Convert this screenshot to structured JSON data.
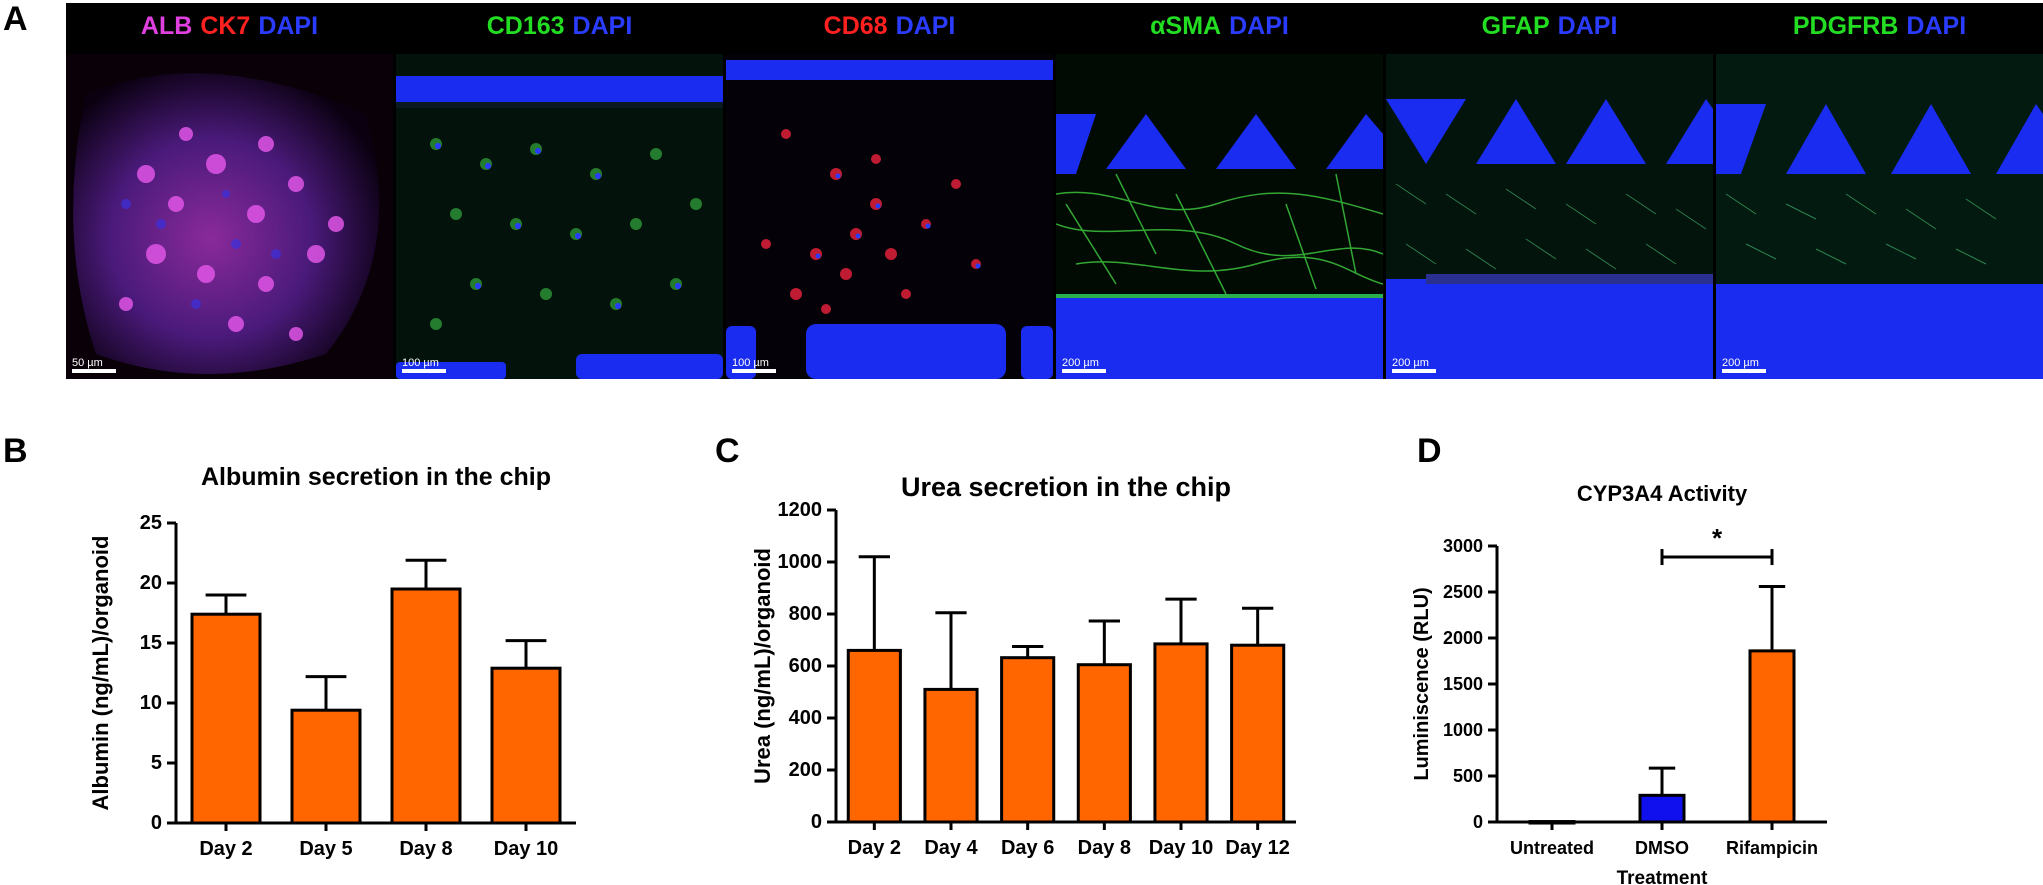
{
  "panel_labels": {
    "a": "A",
    "b": "B",
    "c": "C",
    "d": "D"
  },
  "micrographs": [
    {
      "stains": [
        {
          "text": "ALB",
          "color": "#e040e0"
        },
        {
          "text": "CK7",
          "color": "#ff2020"
        },
        {
          "text": "DAPI",
          "color": "#2a3cff"
        }
      ],
      "scale": "50 µm"
    },
    {
      "stains": [
        {
          "text": "CD163",
          "color": "#22dd22"
        },
        {
          "text": "DAPI",
          "color": "#2a3cff"
        }
      ],
      "scale": "100 µm"
    },
    {
      "stains": [
        {
          "text": "CD68",
          "color": "#ff2020"
        },
        {
          "text": "DAPI",
          "color": "#2a3cff"
        }
      ],
      "scale": "100 µm"
    },
    {
      "stains": [
        {
          "text": "αSMA",
          "color": "#22dd22"
        },
        {
          "text": "DAPI",
          "color": "#2a3cff"
        }
      ],
      "scale": "200 µm"
    },
    {
      "stains": [
        {
          "text": "GFAP",
          "color": "#22dd22"
        },
        {
          "text": "DAPI",
          "color": "#2a3cff"
        }
      ],
      "scale": "200 µm"
    },
    {
      "stains": [
        {
          "text": "PDGFRB",
          "color": "#22dd22"
        },
        {
          "text": "DAPI",
          "color": "#2a3cff"
        }
      ],
      "scale": "200 µm"
    }
  ],
  "chart_data": [
    {
      "type": "bar",
      "title": "Albumin secretion in the chip",
      "xlabel": "",
      "ylabel": "Albumin (ng/mL)/organoid",
      "categories": [
        "Day 2",
        "Day 5",
        "Day 8",
        "Day 10"
      ],
      "values": [
        17.4,
        9.4,
        19.5,
        12.9
      ],
      "errors": [
        1.6,
        2.8,
        2.4,
        2.3
      ],
      "ylim": [
        0,
        25
      ],
      "yticks": [
        0,
        5,
        10,
        15,
        20,
        25
      ],
      "bar_color": "#ff6600"
    },
    {
      "type": "bar",
      "title": "Urea secretion in the chip",
      "xlabel": "",
      "ylabel": "Urea (ng/mL)/organoid",
      "categories": [
        "Day 2",
        "Day 4",
        "Day 6",
        "Day 8",
        "Day 10",
        "Day 12"
      ],
      "values": [
        660,
        510,
        632,
        605,
        685,
        680
      ],
      "errors": [
        360,
        295,
        43,
        168,
        172,
        142
      ],
      "ylim": [
        0,
        1200
      ],
      "yticks": [
        0,
        200,
        400,
        600,
        800,
        1000,
        1200
      ],
      "bar_color": "#ff6600"
    },
    {
      "type": "bar",
      "title": "CYP3A4 Activity",
      "xlabel": "Treatment",
      "ylabel": "Luminiscence (RLU)",
      "categories": [
        "Untreated",
        "DMSO",
        "Rifampicin"
      ],
      "values": [
        5,
        290,
        1860
      ],
      "errors": [
        0,
        295,
        700
      ],
      "colors": [
        "#ff6600",
        "#1010ee",
        "#ff6600"
      ],
      "ylim": [
        0,
        3000
      ],
      "yticks": [
        0,
        500,
        1000,
        1500,
        2000,
        2500,
        3000
      ],
      "significance": {
        "from": "DMSO",
        "to": "Rifampicin",
        "label": "*"
      }
    }
  ]
}
